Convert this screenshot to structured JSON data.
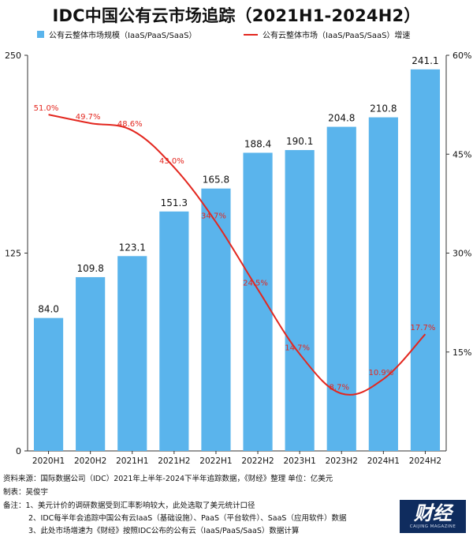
{
  "title": "IDC中国公有云市场追踪（2021H1-2024H2）",
  "chart_data": {
    "type": "bar+line",
    "categories": [
      "2020H1",
      "2020H2",
      "2021H1",
      "2021H2",
      "2022H1",
      "2022H2",
      "2023H1",
      "2023H2",
      "2024H1",
      "2024H2"
    ],
    "series": [
      {
        "name": "公有云整体市场规模（IaaS/PaaS/SaaS）",
        "type": "bar",
        "axis": "left",
        "values": [
          84.0,
          109.8,
          123.1,
          151.3,
          165.8,
          188.4,
          190.1,
          204.8,
          210.8,
          241.1
        ],
        "labels": [
          "84.0",
          "109.8",
          "123.1",
          "151.3",
          "165.8",
          "188.4",
          "190.1",
          "204.8",
          "210.8",
          "241.1"
        ]
      },
      {
        "name": "公有云整体市场（IaaS/PaaS/SaaS）增速",
        "type": "line",
        "axis": "right",
        "values": [
          51.0,
          49.7,
          48.6,
          43.0,
          34.7,
          24.5,
          14.7,
          8.7,
          10.9,
          17.7
        ],
        "labels": [
          "51.0%",
          "49.7%",
          "48.6%",
          "43.0%",
          "34.7%",
          "24.5%",
          "14.7%",
          "8.7%",
          "10.9%",
          "17.7%"
        ]
      }
    ],
    "y_left": {
      "min": 0,
      "max": 250,
      "ticks": [
        0,
        125,
        250
      ],
      "tick_labels": [
        "0",
        "125",
        "250"
      ]
    },
    "y_right": {
      "min": 0,
      "max": 60,
      "ticks": [
        15,
        30,
        45,
        60
      ],
      "tick_labels": [
        "15%",
        "30%",
        "45%",
        "60%"
      ]
    },
    "grid": false,
    "legend_position": "top",
    "colors": {
      "bar": "#5ab4ec",
      "line": "#e3271f",
      "line_label": "#e3271f",
      "axis": "#333333"
    }
  },
  "footer": {
    "source": "资料来源：国际数据公司（IDC）2021年上半年-2024下半年追踪数据，《财经》整理    单位：亿美元",
    "maker": "制表：吴俊宇",
    "notes": [
      "备注：1、美元计价的调研数据受到汇率影响较大，此处选取了美元统计口径",
      "2、IDC每半年会追踪中国公有云IaaS（基础设施）、PaaS（平台软件）、SaaS（应用软件）数据",
      "3、此处市场增速为《财经》按照IDC公布的公有云（IaaS/PaaS/SaaS）数据计算"
    ]
  },
  "logo": {
    "text": "财经",
    "subtext": "CAIJING MAGAZINE"
  }
}
